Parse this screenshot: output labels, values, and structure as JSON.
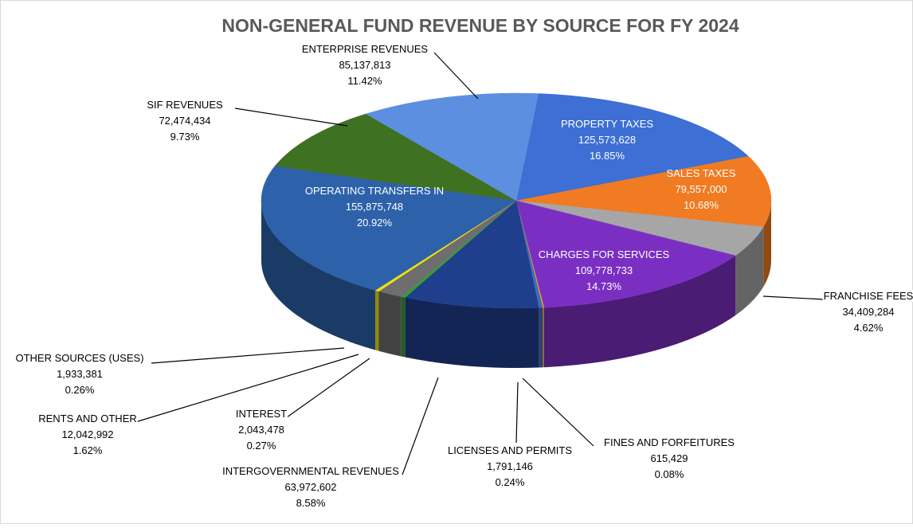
{
  "chart_data": {
    "type": "pie",
    "title": "NON-GENERAL FUND REVENUE BY SOURCE FOR FY 2024",
    "categories": [
      "PROPERTY TAXES",
      "SALES TAXES",
      "FRANCHISE FEES",
      "CHARGES FOR SERVICES",
      "FINES AND FORFEITURES",
      "LICENSES AND PERMITS",
      "INTERGOVERNMENTAL REVENUES",
      "INTEREST",
      "RENTS AND OTHER",
      "OTHER SOURCES (USES)",
      "OPERATING TRANSFERS IN",
      "SIF REVENUES",
      "ENTERPRISE REVENUES"
    ],
    "values": [
      125573628,
      79557000,
      34409284,
      109778733,
      615429,
      1791146,
      63972602,
      2043478,
      12042992,
      1933381,
      155875748,
      72474434,
      85137813
    ],
    "value_labels": [
      "125,573,628",
      "79,557,000",
      "34,409,284",
      "109,778,733",
      "615,429",
      "1,791,146",
      "63,972,602",
      "2,043,478",
      "12,042,992",
      "1,933,381",
      "155,875,748",
      "72,474,434",
      "85,137,813"
    ],
    "percent_labels": [
      "16.85%",
      "10.68%",
      "4.62%",
      "14.73%",
      "0.08%",
      "0.24%",
      "8.58%",
      "0.27%",
      "1.62%",
      "0.26%",
      "20.92%",
      "9.73%",
      "11.42%"
    ],
    "colors": [
      "#3d6fd4",
      "#f07b22",
      "#a6a6a6",
      "#7b2fc2",
      "#f39a22",
      "#3f6cc0",
      "#1f3e8c",
      "#3a9a3a",
      "#6e6e6e",
      "#f2e20c",
      "#2d62ab",
      "#3f7122",
      "#5d8fe0"
    ]
  }
}
